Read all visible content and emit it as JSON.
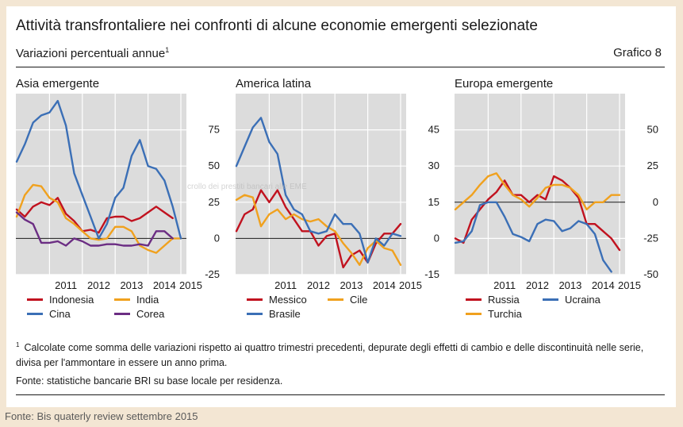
{
  "header": {
    "title": "Attività transfrontaliere nei confronti di alcune economie emergenti selezionate",
    "subtitle": "Variazioni percentuali annue",
    "subtitle_note": "1",
    "chart_number": "Grafico 8"
  },
  "footnote": {
    "marker": "1",
    "text": "Calcolate come somma delle variazioni rispetto ai quattro trimestri precedenti, depurate degli effetti di cambio e delle discontinuità nelle serie, divisa per l'ammontare in essere un anno prima."
  },
  "source": "Fonte: statistiche bancarie BRI su base locale per residenza.",
  "outer_source": "Fonte: Bis quaterly review settembre 2015",
  "watermark": "crollo dei prestiti bancari alle EME",
  "colors": {
    "red": "#c1121f",
    "orange": "#f0a11e",
    "blue": "#3b6fb6",
    "purple": "#6b2d83",
    "plot_bg": "#dcdcdc"
  },
  "chart_data": [
    {
      "type": "line",
      "title": "Asia emergente",
      "ylim": [
        -25,
        100
      ],
      "yticks": [
        75,
        50,
        25,
        0,
        -25
      ],
      "xticks": [
        "2011",
        "2012",
        "2013",
        "2014",
        "2015"
      ],
      "x": [
        "2010-01",
        "2010-04",
        "2010-07",
        "2010-10",
        "2011-01",
        "2011-04",
        "2011-07",
        "2011-10",
        "2012-01",
        "2012-04",
        "2012-07",
        "2012-10",
        "2013-01",
        "2013-04",
        "2013-07",
        "2013-10",
        "2014-01",
        "2014-04",
        "2014-07",
        "2014-10",
        "2015-01"
      ],
      "series": [
        {
          "name": "Indonesia",
          "color": "red",
          "values": [
            20,
            15,
            22,
            25,
            23,
            28,
            17,
            12,
            5,
            6,
            4,
            14,
            15,
            15,
            12,
            14,
            18,
            22,
            18,
            14,
            null
          ]
        },
        {
          "name": "India",
          "color": "orange",
          "values": [
            15,
            30,
            37,
            36,
            28,
            25,
            14,
            10,
            5,
            0,
            -1,
            0,
            8,
            8,
            5,
            -5,
            -8,
            -10,
            -5,
            0,
            0
          ]
        },
        {
          "name": "Cina",
          "color": "blue",
          "values": [
            53,
            65,
            80,
            85,
            87,
            95,
            78,
            45,
            30,
            15,
            0,
            10,
            28,
            35,
            57,
            68,
            50,
            48,
            40,
            22,
            0
          ]
        },
        {
          "name": "Corea",
          "color": "purple",
          "values": [
            18,
            13,
            10,
            -3,
            -3,
            -2,
            -5,
            0,
            -2,
            -5,
            -5,
            -4,
            -4,
            -5,
            -5,
            -4,
            -5,
            5,
            5,
            0,
            null
          ]
        }
      ],
      "legend": {
        "position": "bottom"
      }
    },
    {
      "type": "line",
      "title": "America latina",
      "ylim": [
        -15,
        60
      ],
      "yticks": [
        45,
        30,
        15,
        0,
        -15
      ],
      "xticks": [
        "2011",
        "2012",
        "2013",
        "2014",
        "2015"
      ],
      "x": [
        "2010-01",
        "2010-04",
        "2010-07",
        "2010-10",
        "2011-01",
        "2011-04",
        "2011-07",
        "2011-10",
        "2012-01",
        "2012-04",
        "2012-07",
        "2012-10",
        "2013-01",
        "2013-04",
        "2013-07",
        "2013-10",
        "2014-01",
        "2014-04",
        "2014-07",
        "2014-10",
        "2015-01"
      ],
      "series": [
        {
          "name": "Messico",
          "color": "red",
          "values": [
            3,
            10,
            12,
            20,
            15,
            20,
            13,
            8,
            3,
            3,
            -3,
            1,
            2,
            -12,
            -7,
            -5,
            -10,
            -2,
            2,
            2,
            6
          ]
        },
        {
          "name": "Cile",
          "color": "orange",
          "values": [
            16,
            18,
            17,
            5,
            10,
            12,
            8,
            10,
            8,
            7,
            8,
            5,
            3,
            -2,
            -6,
            -11,
            -4,
            -1,
            -4,
            -5,
            -11
          ]
        },
        {
          "name": "Brasile",
          "color": "blue",
          "values": [
            30,
            38,
            46,
            50,
            40,
            35,
            18,
            12,
            10,
            3,
            2,
            3,
            10,
            6,
            6,
            2,
            -10,
            0,
            -3,
            2,
            1
          ]
        }
      ],
      "legend": {
        "position": "bottom"
      }
    },
    {
      "type": "line",
      "title": "Europa emergente",
      "ylim": [
        -50,
        75
      ],
      "yticks": [
        50,
        25,
        0,
        -25,
        -50
      ],
      "xticks": [
        "2011",
        "2012",
        "2013",
        "2014",
        "2015"
      ],
      "x": [
        "2010-01",
        "2010-04",
        "2010-07",
        "2010-10",
        "2011-01",
        "2011-04",
        "2011-07",
        "2011-10",
        "2012-01",
        "2012-04",
        "2012-07",
        "2012-10",
        "2013-01",
        "2013-04",
        "2013-07",
        "2013-10",
        "2014-01",
        "2014-04",
        "2014-07",
        "2014-10",
        "2015-01"
      ],
      "series": [
        {
          "name": "Russia",
          "color": "red",
          "values": [
            -25,
            -28,
            -12,
            -5,
            2,
            7,
            15,
            5,
            5,
            0,
            5,
            2,
            18,
            15,
            10,
            3,
            -15,
            -15,
            -20,
            -25,
            -33
          ]
        },
        {
          "name": "Ucraina",
          "color": "blue",
          "values": [
            -28,
            -27,
            -20,
            -2,
            0,
            0,
            -10,
            -22,
            -24,
            -27,
            -15,
            -12,
            -13,
            -20,
            -18,
            -13,
            -15,
            -22,
            -40,
            -48,
            null
          ]
        },
        {
          "name": "Turchia",
          "color": "orange",
          "values": [
            -5,
            0,
            5,
            12,
            18,
            20,
            12,
            5,
            2,
            -3,
            3,
            10,
            12,
            12,
            10,
            5,
            -5,
            0,
            0,
            5,
            5
          ]
        }
      ],
      "legend": {
        "position": "bottom"
      }
    }
  ]
}
